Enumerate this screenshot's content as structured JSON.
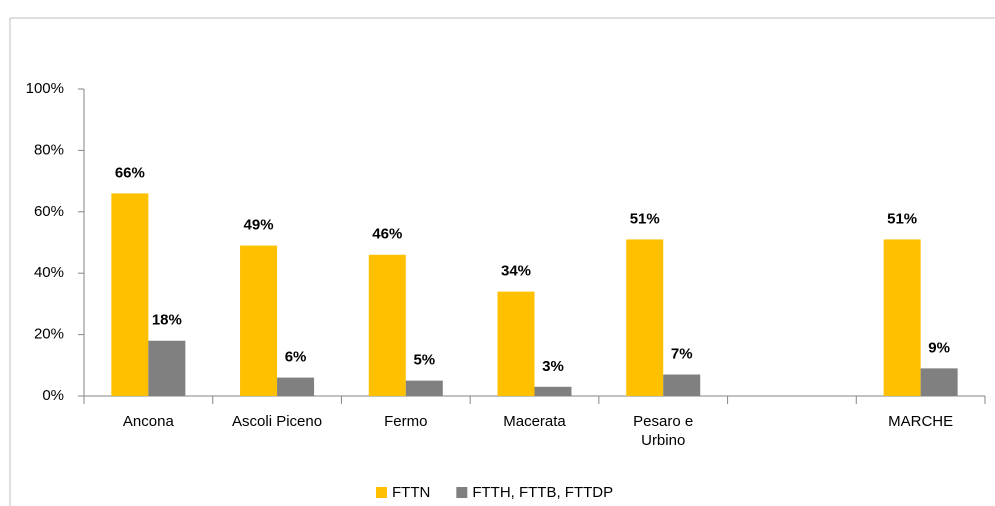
{
  "chart_data": {
    "type": "bar",
    "categories": [
      "Ancona",
      "Ascoli Piceno",
      "Fermo",
      "Macerata",
      "Pesaro e Urbino",
      null,
      "MARCHE"
    ],
    "series": [
      {
        "name": "FTTN",
        "color": "#FFC000",
        "values": [
          66,
          49,
          46,
          34,
          51,
          null,
          51
        ],
        "value_labels": [
          "66%",
          "49%",
          "46%",
          "34%",
          "51%",
          null,
          "51%"
        ]
      },
      {
        "name": "FTTH, FTTB, FTTDP",
        "color": "#808080",
        "values": [
          18,
          6,
          5,
          3,
          7,
          null,
          9
        ],
        "value_labels": [
          "18%",
          "6%",
          "5%",
          "3%",
          "7%",
          null,
          "9%"
        ]
      }
    ],
    "ylim": [
      0,
      100
    ],
    "yticks": [
      {
        "value": 0,
        "label": "0%"
      },
      {
        "value": 20,
        "label": "20%"
      },
      {
        "value": 40,
        "label": "40%"
      },
      {
        "value": 60,
        "label": "60%"
      },
      {
        "value": 80,
        "label": "80%"
      },
      {
        "value": 100,
        "label": "100%"
      }
    ],
    "legend": "bottom"
  }
}
